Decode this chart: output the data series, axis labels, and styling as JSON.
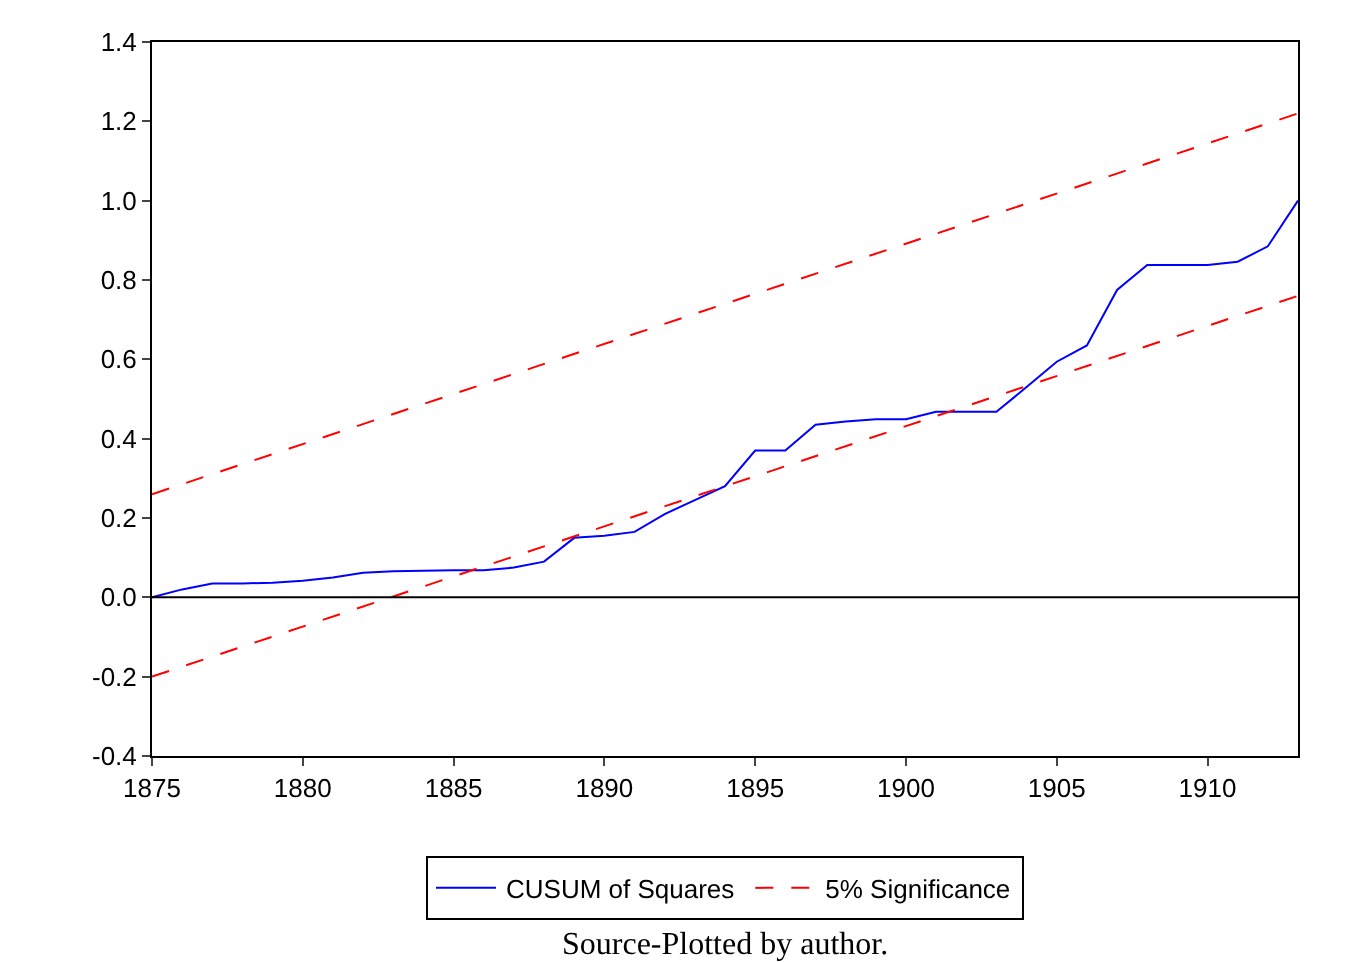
{
  "chart_data": {
    "type": "line",
    "x": [
      1875,
      1876,
      1877,
      1878,
      1879,
      1880,
      1881,
      1882,
      1883,
      1884,
      1885,
      1886,
      1887,
      1888,
      1889,
      1890,
      1891,
      1892,
      1893,
      1894,
      1895,
      1896,
      1897,
      1898,
      1899,
      1900,
      1901,
      1902,
      1903,
      1904,
      1905,
      1906,
      1907,
      1908,
      1909,
      1910,
      1911,
      1912,
      1913
    ],
    "series": [
      {
        "name": "CUSUM of Squares",
        "color": "#0000ff",
        "line_style": "solid",
        "values": [
          0,
          0.02,
          0.035,
          0.035,
          0.037,
          0.042,
          0.05,
          0.062,
          0.066,
          0.067,
          0.068,
          0.068,
          0.075,
          0.09,
          0.15,
          0.155,
          0.165,
          0.21,
          0.245,
          0.28,
          0.37,
          0.37,
          0.435,
          0.443,
          0.449,
          0.449,
          0.468,
          0.468,
          0.468,
          0.53,
          0.594,
          0.635,
          0.775,
          0.838,
          0.838,
          0.838,
          0.846,
          0.885,
          1.0
        ]
      },
      {
        "name": "5% Significance",
        "color": "#ff0000",
        "line_style": "dashed",
        "values": [
          0.26,
          null,
          null,
          null,
          null,
          null,
          null,
          null,
          null,
          null,
          null,
          null,
          null,
          null,
          null,
          null,
          null,
          null,
          null,
          null,
          null,
          null,
          null,
          null,
          null,
          null,
          null,
          null,
          null,
          null,
          null,
          null,
          null,
          null,
          null,
          null,
          null,
          null,
          1.22
        ]
      },
      {
        "color": "#ff0000",
        "line_style": "dashed",
        "values": [
          -0.2,
          null,
          null,
          null,
          null,
          null,
          null,
          null,
          null,
          null,
          null,
          null,
          null,
          null,
          null,
          null,
          null,
          null,
          null,
          null,
          null,
          null,
          null,
          null,
          null,
          null,
          null,
          null,
          null,
          null,
          null,
          null,
          null,
          null,
          null,
          null,
          null,
          null,
          0.76
        ]
      }
    ],
    "xlim": [
      1875,
      1913
    ],
    "xticks": [
      1875,
      1880,
      1885,
      1890,
      1895,
      1900,
      1905,
      1910
    ],
    "ylim": [
      -0.4,
      1.4
    ],
    "yticks": [
      {
        "value": -0.4,
        "label": "-0.4"
      },
      {
        "value": -0.2,
        "label": "-0.2"
      },
      {
        "value": 0,
        "label": "0.0"
      },
      {
        "value": 0.2,
        "label": "0.2"
      },
      {
        "value": 0.4,
        "label": "0.4"
      },
      {
        "value": 0.6,
        "label": "0.6"
      },
      {
        "value": 0.8,
        "label": "0.8"
      },
      {
        "value": 1.0,
        "label": "1.0"
      },
      {
        "value": 1.2,
        "label": "1.2"
      },
      {
        "value": 1.4,
        "label": "1.4"
      }
    ],
    "ref_lines": [
      {
        "axis": "y",
        "value": 0,
        "color": "#000000"
      }
    ],
    "legend": "bottom",
    "marker": "none",
    "annotations": [
      "Source-Plotted by author."
    ]
  }
}
